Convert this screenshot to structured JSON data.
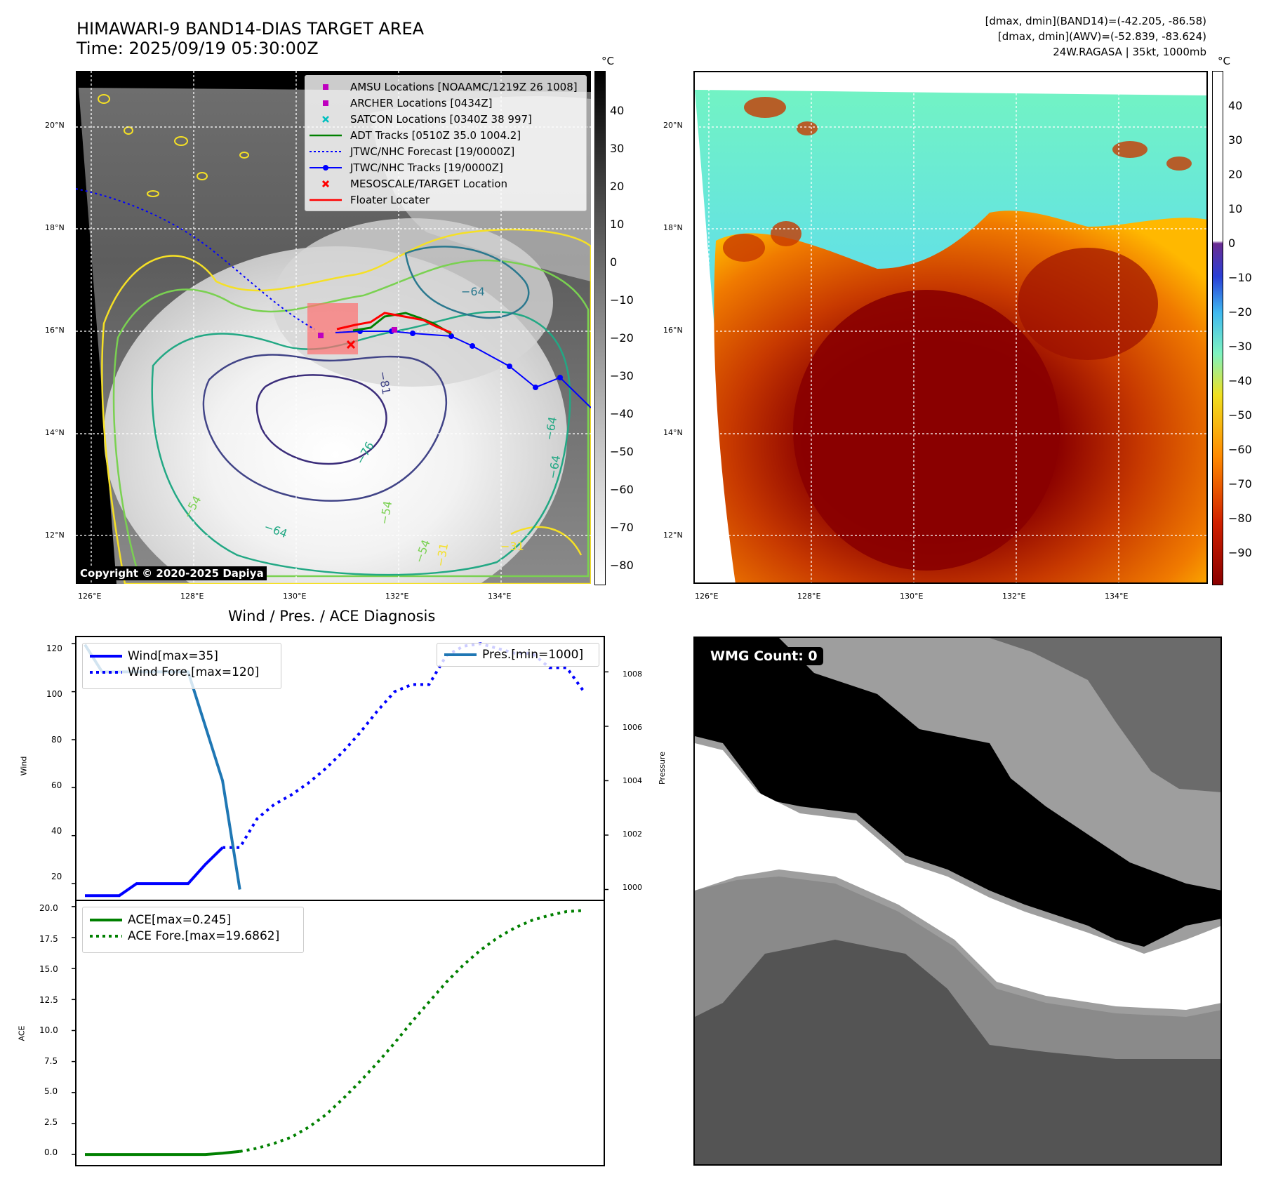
{
  "header": {
    "title_line1": "HIMAWARI-9 BAND14-DIAS TARGET AREA",
    "title_line2": "Time: 2025/09/19 05:30:00Z",
    "info_line1": "[dmax, dmin](BAND14)=(-42.205, -86.58)",
    "info_line2": "[dmax, dmin](AWV)=(-52.839, -83.624)",
    "info_line3": "24W.RAGASA | 35kt, 1000mb"
  },
  "map_axes": {
    "lat_ticks": [
      "20°N",
      "18°N",
      "16°N",
      "14°N",
      "12°N"
    ],
    "lon_ticks": [
      "126°E",
      "128°E",
      "130°E",
      "132°E",
      "134°E"
    ],
    "lon_range": [
      125.7,
      135.7
    ],
    "lat_range": [
      11.0,
      21.0
    ]
  },
  "left_map": {
    "copyright": "Copyright © 2020-2025 Dapiya",
    "colorbar_unit": "°C",
    "colorbar_ticks": [
      "40",
      "30",
      "20",
      "10",
      "0",
      "−10",
      "−20",
      "−30",
      "−40",
      "−50",
      "−60",
      "−70",
      "−80"
    ],
    "contour_labels": [
      "−64",
      "−81",
      "−76",
      "−64",
      "−54",
      "−64",
      "−54",
      "−64",
      "−31",
      "−31",
      "−54"
    ],
    "legend": [
      {
        "label": "AMSU Locations [NOAAMC/1219Z 26 1008]",
        "kind": "square",
        "color": "#bf00bf"
      },
      {
        "label": "ARCHER Locations [0434Z]",
        "kind": "square",
        "color": "#bf00bf"
      },
      {
        "label": "SATCON Locations [0340Z 38 997]",
        "kind": "x",
        "color": "#00bfbf"
      },
      {
        "label": "ADT Tracks [0510Z 35.0 1004.2]",
        "kind": "line",
        "color": "#008000"
      },
      {
        "label": "JTWC/NHC Forecast [19/0000Z]",
        "kind": "dotted",
        "color": "#0000ff"
      },
      {
        "label": "JTWC/NHC Tracks [19/0000Z]",
        "kind": "line-dot",
        "color": "#0000ff"
      },
      {
        "label": "MESOSCALE/TARGET Location",
        "kind": "x",
        "color": "#ff0000"
      },
      {
        "label": "Floater Locater",
        "kind": "line",
        "color": "#ff0000"
      }
    ]
  },
  "right_map": {
    "colorbar_unit": "°C",
    "colorbar_ticks": [
      "40",
      "30",
      "20",
      "10",
      "0",
      "−10",
      "−20",
      "−30",
      "−40",
      "−50",
      "−60",
      "−70",
      "−80",
      "−90"
    ]
  },
  "diagnosis": {
    "title": "Wind / Pres. / ACE Diagnosis",
    "wind_ylabel": "Wind",
    "pressure_ylabel": "Pressure",
    "ace_ylabel": "ACE",
    "wind_ticks": [
      "120",
      "100",
      "80",
      "60",
      "40",
      "20"
    ],
    "pressure_ticks": [
      "1008",
      "1006",
      "1004",
      "1002",
      "1000"
    ],
    "ace_ticks": [
      "20.0",
      "17.5",
      "15.0",
      "12.5",
      "10.0",
      "7.5",
      "5.0",
      "2.5",
      "0.0"
    ],
    "legend_wind": "Wind[max=35]",
    "legend_wind_fore": "Wind Fore.[max=120]",
    "legend_pres": "Pres.[min=1000]",
    "legend_ace": "ACE[max=0.245]",
    "legend_ace_fore": "ACE Fore.[max=19.6862]"
  },
  "chart_data": [
    {
      "type": "line",
      "title": "Wind / Pres. / ACE Diagnosis",
      "ylabel": "Wind",
      "ylim": [
        13,
        123
      ],
      "series": [
        {
          "name": "Wind[max=35]",
          "style": "solid",
          "color": "#0000ff",
          "x": [
            0,
            1,
            2,
            3,
            4,
            5,
            6,
            7,
            8
          ],
          "values": [
            15,
            15,
            15,
            20,
            20,
            20,
            20,
            28,
            35
          ]
        },
        {
          "name": "Wind Fore.[max=120]",
          "style": "dotted",
          "color": "#0000ff",
          "x": [
            8,
            9,
            10,
            11,
            12,
            13,
            14,
            15,
            16,
            17,
            18,
            19,
            20,
            21,
            22,
            23,
            24,
            25,
            26,
            27,
            28,
            29
          ],
          "values": [
            35,
            35,
            47,
            53,
            57,
            62,
            68,
            75,
            83,
            92,
            100,
            103,
            103,
            115,
            119,
            120,
            118,
            116,
            116,
            110,
            110,
            100
          ]
        }
      ],
      "secondary": {
        "ylabel": "Pressure",
        "ylim": [
          999.6,
          1009.3
        ],
        "series": [
          {
            "name": "Pres.[min=1000]",
            "style": "solid",
            "color": "#1f77b4",
            "x": [
              0,
              1,
              2,
              3,
              4,
              5,
              6,
              7,
              8,
              9
            ],
            "values": [
              1009.0,
              1008.0,
              1008.0,
              1008.0,
              1008.0,
              1008.0,
              1008.0,
              1006.0,
              1004.0,
              1000.0
            ]
          }
        ]
      }
    },
    {
      "type": "line",
      "ylabel": "ACE",
      "ylim": [
        -0.9,
        20.5
      ],
      "series": [
        {
          "name": "ACE[max=0.245]",
          "style": "solid",
          "color": "#008000",
          "x": [
            0,
            1,
            2,
            3,
            4,
            5,
            6,
            7,
            8,
            9
          ],
          "values": [
            0,
            0,
            0,
            0,
            0,
            0,
            0,
            0,
            0.1,
            0.245
          ]
        },
        {
          "name": "ACE Fore.[max=19.6862]",
          "style": "dotted",
          "color": "#008000",
          "x": [
            9,
            10,
            11,
            12,
            13,
            14,
            15,
            16,
            17,
            18,
            19,
            20,
            21,
            22,
            23,
            24,
            25,
            26,
            27,
            28,
            29
          ],
          "values": [
            0.245,
            0.5,
            0.9,
            1.4,
            2.2,
            3.2,
            4.5,
            5.9,
            7.4,
            9.0,
            10.7,
            12.3,
            13.9,
            15.3,
            16.5,
            17.5,
            18.3,
            18.9,
            19.3,
            19.6,
            19.6862
          ]
        }
      ]
    }
  ],
  "wmg": {
    "label": "WMG Count: 0"
  }
}
